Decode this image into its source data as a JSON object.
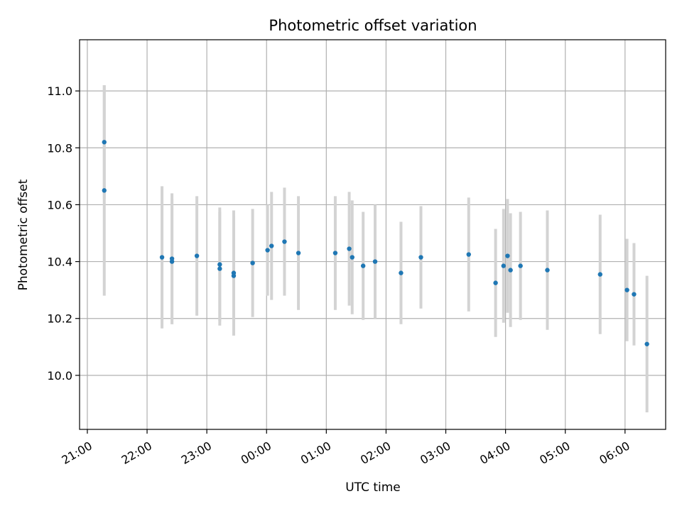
{
  "chart_data": {
    "type": "scatter",
    "title": "Photometric offset variation",
    "xlabel": "UTC time",
    "ylabel": "Photometric offset",
    "x_tick_labels": [
      "21:00",
      "22:00",
      "23:00",
      "00:00",
      "01:00",
      "02:00",
      "03:00",
      "04:00",
      "05:00",
      "06:00"
    ],
    "x_ticks_hours": [
      0,
      1,
      2,
      3,
      4,
      5,
      6,
      7,
      8,
      9
    ],
    "y_ticks": [
      10.0,
      10.2,
      10.4,
      10.6,
      10.8,
      11.0
    ],
    "xlim_hours": [
      -0.13,
      9.68
    ],
    "ylim": [
      9.81,
      11.18
    ],
    "grid": true,
    "colors": {
      "point": "#1f77b4",
      "errorbar": "#d3d3d3",
      "grid": "#b0b0b0"
    },
    "series": [
      {
        "points": [
          {
            "t": "21:17",
            "y": 10.82,
            "err": 0.2
          },
          {
            "t": "21:17",
            "y": 10.65,
            "err": 0.37
          },
          {
            "t": "22:15",
            "y": 10.415,
            "err": 0.25
          },
          {
            "t": "22:25",
            "y": 10.4,
            "err": 0.22
          },
          {
            "t": "22:25",
            "y": 10.41,
            "err": 0.23
          },
          {
            "t": "22:50",
            "y": 10.42,
            "err": 0.21
          },
          {
            "t": "23:13",
            "y": 10.375,
            "err": 0.2
          },
          {
            "t": "23:13",
            "y": 10.39,
            "err": 0.2
          },
          {
            "t": "23:27",
            "y": 10.35,
            "err": 0.21
          },
          {
            "t": "23:27",
            "y": 10.36,
            "err": 0.22
          },
          {
            "t": "23:46",
            "y": 10.395,
            "err": 0.19
          },
          {
            "t": "00:01",
            "y": 10.44,
            "err": 0.16
          },
          {
            "t": "00:05",
            "y": 10.455,
            "err": 0.19
          },
          {
            "t": "00:18",
            "y": 10.47,
            "err": 0.19
          },
          {
            "t": "00:32",
            "y": 10.43,
            "err": 0.2
          },
          {
            "t": "01:09",
            "y": 10.43,
            "err": 0.2
          },
          {
            "t": "01:23",
            "y": 10.445,
            "err": 0.2
          },
          {
            "t": "01:26",
            "y": 10.415,
            "err": 0.2
          },
          {
            "t": "01:37",
            "y": 10.385,
            "err": 0.19
          },
          {
            "t": "01:49",
            "y": 10.4,
            "err": 0.2
          },
          {
            "t": "02:15",
            "y": 10.36,
            "err": 0.18
          },
          {
            "t": "02:35",
            "y": 10.415,
            "err": 0.18
          },
          {
            "t": "03:23",
            "y": 10.425,
            "err": 0.2
          },
          {
            "t": "03:50",
            "y": 10.325,
            "err": 0.19
          },
          {
            "t": "03:58",
            "y": 10.385,
            "err": 0.2
          },
          {
            "t": "04:02",
            "y": 10.42,
            "err": 0.2
          },
          {
            "t": "04:05",
            "y": 10.37,
            "err": 0.2
          },
          {
            "t": "04:15",
            "y": 10.385,
            "err": 0.19
          },
          {
            "t": "04:42",
            "y": 10.37,
            "err": 0.21
          },
          {
            "t": "05:35",
            "y": 10.355,
            "err": 0.21
          },
          {
            "t": "06:02",
            "y": 10.3,
            "err": 0.18
          },
          {
            "t": "06:09",
            "y": 10.285,
            "err": 0.18
          },
          {
            "t": "06:22",
            "y": 10.11,
            "err": 0.24
          }
        ]
      }
    ]
  }
}
